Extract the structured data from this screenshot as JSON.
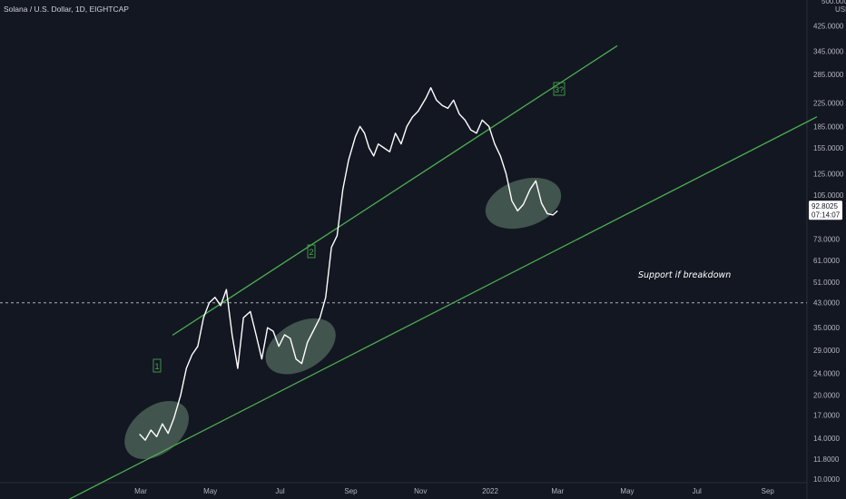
{
  "header": {
    "title": "Solana / U.S. Dollar, 1D, EIGHTCAP"
  },
  "price_axis": {
    "unit": "USD",
    "top_label": "500.0000"
  },
  "current_price": {
    "value": "92.8025",
    "countdown": "07:14:07"
  },
  "annotations": {
    "support_text": "Support if breakdown",
    "wave1": "1",
    "wave2": "2",
    "wave3": "3?"
  },
  "colors": {
    "background": "#131722",
    "price_line": "#ffffff",
    "trend_line": "#4caf50",
    "highlight": "#a5d6a7",
    "axis_text": "#b2b5be",
    "dashed_level": "#d1d4dc"
  },
  "chart_data": {
    "type": "line",
    "title": "Solana / U.S. Dollar, 1D, EIGHTCAP",
    "scale": "log",
    "ylim": [
      10,
      500
    ],
    "y_ticks": [
      "425.0000",
      "345.0000",
      "285.0000",
      "225.0000",
      "185.0000",
      "155.0000",
      "125.0000",
      "105.0000",
      "92.8025",
      "73.0000",
      "61.0000",
      "51.0000",
      "43.0000",
      "35.0000",
      "29.0000",
      "24.0000",
      "20.0000",
      "17.0000",
      "14.0000",
      "11.8000",
      "10.0000"
    ],
    "x_ticks": [
      "Mar",
      "May",
      "Jul",
      "Sep",
      "Nov",
      "2022",
      "Mar",
      "May",
      "Jul",
      "Sep"
    ],
    "dashed_level": 43,
    "series": [
      {
        "x": [
          "2021-02-28",
          "2021-03-05",
          "2021-03-10",
          "2021-03-15",
          "2021-03-20",
          "2021-03-25",
          "2021-03-30",
          "2021-04-05",
          "2021-04-10",
          "2021-04-15",
          "2021-04-20",
          "2021-04-25",
          "2021-04-30",
          "2021-05-05",
          "2021-05-10",
          "2021-05-15",
          "2021-05-20",
          "2021-05-25",
          "2021-05-30",
          "2021-06-05",
          "2021-06-10",
          "2021-06-15",
          "2021-06-20",
          "2021-06-25",
          "2021-06-30",
          "2021-07-05",
          "2021-07-10",
          "2021-07-15",
          "2021-07-20",
          "2021-07-25",
          "2021-07-30",
          "2021-08-05",
          "2021-08-10",
          "2021-08-15",
          "2021-08-20",
          "2021-08-25",
          "2021-08-30",
          "2021-09-05",
          "2021-09-09",
          "2021-09-13",
          "2021-09-17",
          "2021-09-21",
          "2021-09-25",
          "2021-09-30",
          "2021-10-05",
          "2021-10-10",
          "2021-10-15",
          "2021-10-20",
          "2021-10-25",
          "2021-10-30",
          "2021-11-06",
          "2021-11-10",
          "2021-11-15",
          "2021-11-20",
          "2021-11-25",
          "2021-11-30",
          "2021-12-05",
          "2021-12-10",
          "2021-12-15",
          "2021-12-20",
          "2021-12-25",
          "2021-12-31",
          "2022-01-05",
          "2022-01-10",
          "2022-01-15",
          "2022-01-20",
          "2022-01-25",
          "2022-01-30",
          "2022-02-05",
          "2022-02-10",
          "2022-02-15",
          "2022-02-20",
          "2022-02-25",
          "2022-03-01"
        ],
        "y": [
          14.5,
          13.8,
          15,
          14.2,
          15.8,
          14.6,
          16.5,
          20,
          25,
          28,
          30,
          38,
          43,
          45,
          42,
          48,
          33,
          25,
          38,
          40,
          33,
          27,
          35,
          34,
          30,
          33,
          32,
          27,
          26,
          31,
          34,
          38,
          45,
          68,
          75,
          110,
          140,
          170,
          185,
          175,
          155,
          145,
          160,
          155,
          150,
          175,
          160,
          185,
          200,
          210,
          235,
          255,
          230,
          220,
          215,
          230,
          205,
          195,
          180,
          175,
          195,
          185,
          160,
          145,
          125,
          100,
          92,
          97,
          110,
          118,
          98,
          90,
          89,
          92
        ]
      }
    ],
    "trendlines": [
      {
        "name": "upper channel",
        "from": [
          "2021-04-08",
          35
        ],
        "to": [
          "2022-02-28",
          260
        ]
      },
      {
        "name": "support",
        "from": [
          "2021-02-01",
          10
        ],
        "to": [
          "2022-06-12",
          110
        ]
      }
    ],
    "highlights": [
      {
        "center": [
          "2021-03-15",
          15
        ]
      },
      {
        "center": [
          "2021-07-19",
          30
        ]
      },
      {
        "center": [
          "2022-01-30",
          98
        ]
      }
    ]
  }
}
